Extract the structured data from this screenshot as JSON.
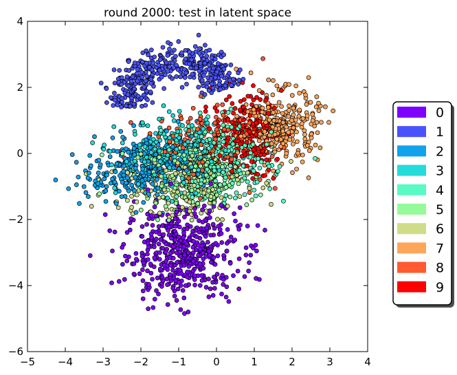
{
  "chart_data": {
    "type": "scatter",
    "title": "round 2000: test in latent space",
    "xlabel": "",
    "ylabel": "",
    "xlim": [
      -5,
      4
    ],
    "ylim": [
      -6,
      4
    ],
    "x_ticks": [
      -5,
      -4,
      -3,
      -2,
      -1,
      0,
      1,
      2,
      3,
      4
    ],
    "y_ticks": [
      -6,
      -4,
      -2,
      0,
      2,
      4
    ],
    "grid": false,
    "legend_position": "right",
    "series": [
      {
        "name": "0",
        "color": "#7f00ff"
      },
      {
        "name": "1",
        "color": "#4a53fb"
      },
      {
        "name": "2",
        "color": "#11a2ec"
      },
      {
        "name": "3",
        "color": "#24dbdb"
      },
      {
        "name": "4",
        "color": "#5afac4"
      },
      {
        "name": "5",
        "color": "#96fa9a"
      },
      {
        "name": "6",
        "color": "#d0dc87"
      },
      {
        "name": "7",
        "color": "#ffa55a"
      },
      {
        "name": "8",
        "color": "#ff5a30"
      },
      {
        "name": "9",
        "color": "#ff0000"
      }
    ],
    "clusters": [
      {
        "series": "0",
        "shape": "gauss",
        "n": 520,
        "cx": -0.9,
        "cy": -3.0,
        "sx": 0.75,
        "sy": 0.7,
        "rot": 0
      },
      {
        "series": "1",
        "shape": "arc",
        "n": 420,
        "cx": -1.0,
        "cy": 1.5,
        "r": 1.35,
        "rw": 0.28,
        "a0": 20,
        "a1": 185
      },
      {
        "series": "2",
        "shape": "gauss",
        "n": 300,
        "cx": -2.0,
        "cy": -0.4,
        "sx": 0.75,
        "sy": 0.45,
        "rot": 20
      },
      {
        "series": "3",
        "shape": "gauss",
        "n": 260,
        "cx": -1.2,
        "cy": -0.1,
        "sx": 0.7,
        "sy": 0.55,
        "rot": 0
      },
      {
        "series": "4",
        "shape": "gauss",
        "n": 260,
        "cx": 0.1,
        "cy": -0.2,
        "sx": 0.7,
        "sy": 0.6,
        "rot": 0
      },
      {
        "series": "5",
        "shape": "gauss",
        "n": 220,
        "cx": -0.6,
        "cy": -0.7,
        "sx": 0.8,
        "sy": 0.55,
        "rot": 0
      },
      {
        "series": "6",
        "shape": "gauss",
        "n": 200,
        "cx": -1.0,
        "cy": -0.9,
        "sx": 0.9,
        "sy": 0.55,
        "rot": 0
      },
      {
        "series": "7",
        "shape": "gauss",
        "n": 300,
        "cx": 1.7,
        "cy": 0.8,
        "sx": 0.5,
        "sy": 0.55,
        "rot": 0
      },
      {
        "series": "8",
        "shape": "gauss",
        "n": 150,
        "cx": -0.3,
        "cy": 0.3,
        "sx": 0.8,
        "sy": 0.6,
        "rot": 0
      },
      {
        "series": "9",
        "shape": "gauss",
        "n": 220,
        "cx": 0.8,
        "cy": 0.6,
        "sx": 0.45,
        "sy": 0.6,
        "rot": 0
      }
    ]
  }
}
